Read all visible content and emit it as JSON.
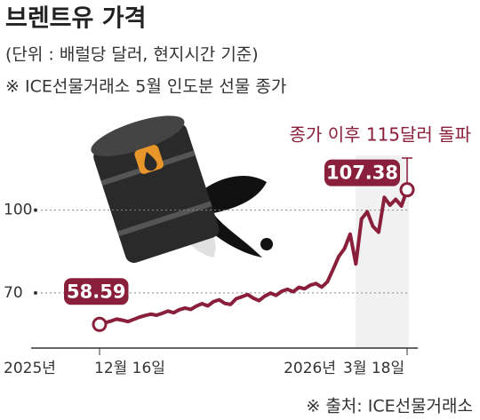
{
  "chart_data": {
    "type": "line",
    "title": "브렌트유 가격",
    "subtitle": "(단위 : 배럴당 달러, 현지시간 기준)",
    "note": "※ ICE선물거래소 5월 인도분 선물 종가",
    "source": "※ 출처: ICE선물거래소",
    "annotation": "종가 이후 115달러 돌파",
    "x_year_labels": [
      "2025년",
      "2026년"
    ],
    "categories": [
      "12월 16일",
      null,
      null,
      null,
      null,
      null,
      null,
      null,
      null,
      null,
      null,
      null,
      null,
      null,
      null,
      null,
      null,
      null,
      null,
      null,
      null,
      null,
      null,
      null,
      null,
      null,
      null,
      null,
      null,
      null,
      null,
      null,
      null,
      null,
      null,
      null,
      null,
      null,
      null,
      null,
      null,
      null,
      null,
      null,
      null,
      null,
      null,
      null,
      null,
      null,
      null,
      null,
      null,
      null,
      "3월 18일"
    ],
    "series": [
      {
        "color": "#8a1f3c",
        "values": [
          58.59,
          59.2,
          59.8,
          60.5,
          60.1,
          59.6,
          60.4,
          61.2,
          61.8,
          62.3,
          61.9,
          62.6,
          63.4,
          62.8,
          63.9,
          64.5,
          64.0,
          65.2,
          66.1,
          65.3,
          66.8,
          67.5,
          66.2,
          65.8,
          67.9,
          68.6,
          69.4,
          68.1,
          67.2,
          68.8,
          69.9,
          69.1,
          70.6,
          71.3,
          70.4,
          72.0,
          71.5,
          72.8,
          73.4,
          72.1,
          74.0,
          78.5,
          83.2,
          86.0,
          91.3,
          80.5,
          96.8,
          99.4,
          94.1,
          92.0,
          104.6,
          101.8,
          103.9,
          101.5,
          107.38
        ],
        "value_labels": [
          "58.59",
          null,
          null,
          null,
          null,
          null,
          null,
          null,
          null,
          null,
          null,
          null,
          null,
          null,
          null,
          null,
          null,
          null,
          null,
          null,
          null,
          null,
          null,
          null,
          null,
          null,
          null,
          null,
          null,
          null,
          null,
          null,
          null,
          null,
          null,
          null,
          null,
          null,
          null,
          null,
          null,
          null,
          null,
          null,
          null,
          null,
          null,
          null,
          null,
          null,
          null,
          null,
          null,
          null,
          "107.38"
        ]
      }
    ],
    "ylim": [
      50,
      115
    ],
    "yticks": [
      70,
      100
    ],
    "grid": true
  }
}
